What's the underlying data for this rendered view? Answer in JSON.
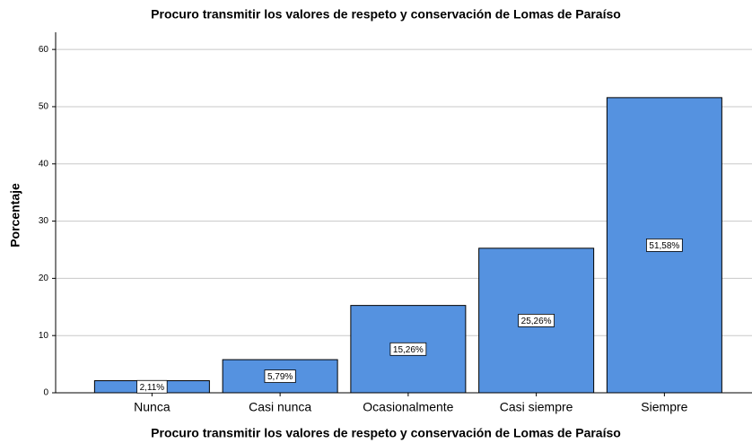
{
  "chart_data": {
    "type": "bar",
    "title": "Procuro transmitir los valores de respeto y conservación de Lomas de Paraíso",
    "x_label": "Procuro transmitir los valores de respeto y conservación de Lomas de Paraíso",
    "y_label": "Porcentaje",
    "categories": [
      "Nunca",
      "Casi nunca",
      "Ocasionalmente",
      "Casi siempre",
      "Siempre"
    ],
    "values": [
      2.11,
      5.79,
      15.26,
      25.26,
      51.58
    ],
    "value_labels": [
      "2,11%",
      "5,79%",
      "15,26%",
      "25,26%",
      "51,58%"
    ],
    "color": "#5592e0",
    "ylim": [
      0,
      63
    ],
    "yticks": [
      0,
      10,
      20,
      30,
      40,
      50,
      60
    ],
    "grid": true
  }
}
